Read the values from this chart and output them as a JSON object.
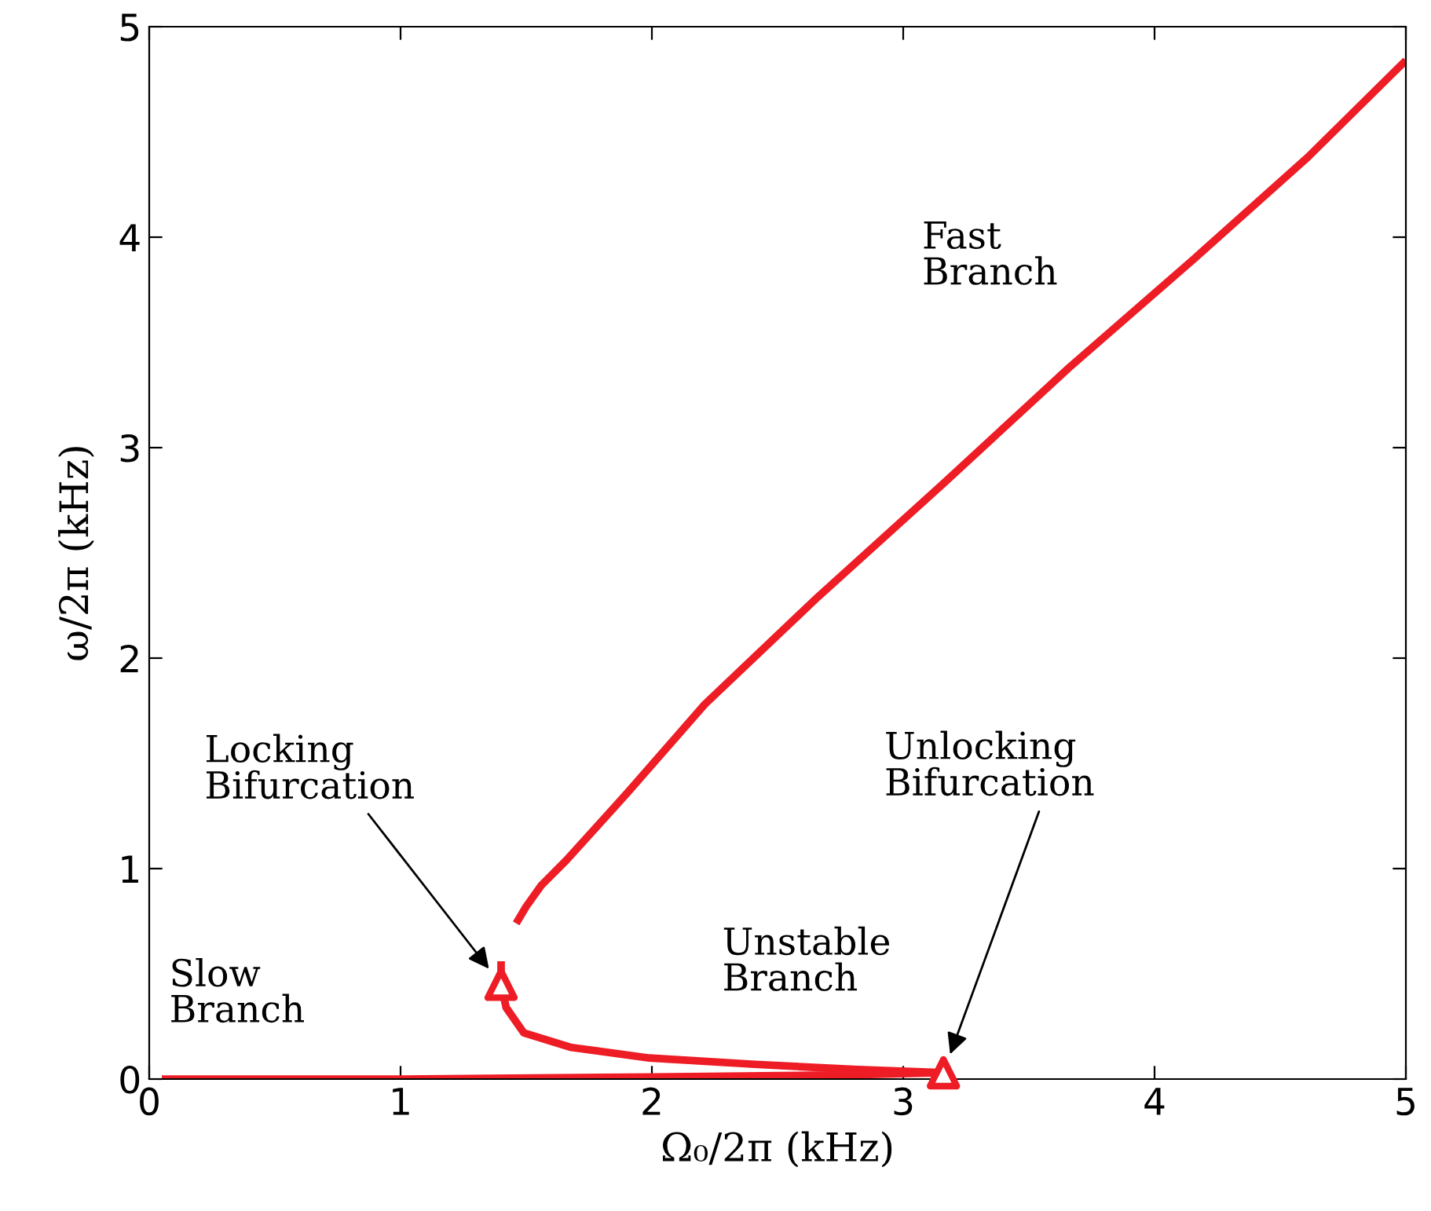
{
  "chart_data": {
    "type": "line",
    "xlabel": "Ω₀/2π (kHz)",
    "ylabel": "ω/2π (kHz)",
    "xlim": [
      0,
      5
    ],
    "ylim": [
      0,
      5
    ],
    "xticks": [
      0,
      1,
      2,
      3,
      4,
      5
    ],
    "yticks": [
      0,
      1,
      2,
      3,
      4,
      5
    ],
    "grid": false,
    "line_style": "solid",
    "series": [
      {
        "color": "#ee1c25",
        "x": [
          1.46,
          1.5,
          1.56,
          1.66,
          1.91,
          2.21,
          2.66,
          3.16,
          3.66,
          4.16,
          4.61,
          5.0
        ],
        "values": [
          0.74,
          0.82,
          0.92,
          1.04,
          1.37,
          1.78,
          2.29,
          2.83,
          3.38,
          3.9,
          4.38,
          4.84
        ]
      },
      {
        "color": "#ee1c25",
        "x": [
          1.4,
          1.4,
          1.42,
          1.49,
          1.68,
          1.99,
          2.41,
          2.82,
          3.16
        ],
        "values": [
          0.56,
          0.45,
          0.34,
          0.22,
          0.15,
          0.1,
          0.07,
          0.045,
          0.03
        ]
      },
      {
        "color": "#ee1c25",
        "x": [
          0.05,
          1.0,
          2.0,
          2.8,
          3.16
        ],
        "values": [
          0.0,
          0.0,
          0.01,
          0.02,
          0.03
        ]
      },
      {
        "type": "scatter",
        "marker": "triangle",
        "color": "#ee1c25",
        "x": [
          1.4,
          3.16
        ],
        "values": [
          0.45,
          0.03
        ]
      }
    ],
    "annotations": [
      "Fast\nBranch",
      "Locking\nBifurcation",
      "Slow\nBranch",
      "Unstable\nBranch",
      "Unlocking\nBifurcation"
    ]
  }
}
